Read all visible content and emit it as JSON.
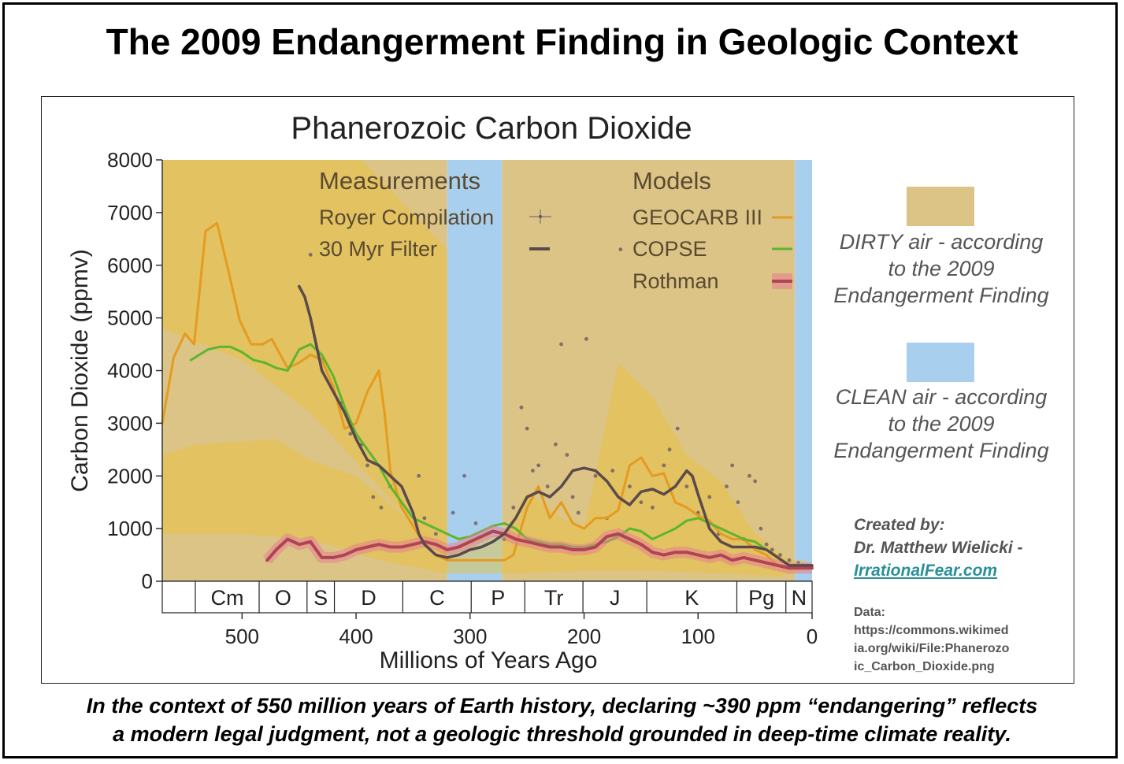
{
  "title": "The 2009 Endangerment Finding in Geologic Context",
  "chart_data": {
    "type": "line",
    "title": "Phanerozoic Carbon Dioxide",
    "xlabel": "Millions of Years Ago",
    "ylabel": "Carbon Dioxide (ppmv)",
    "xlim": [
      570,
      0
    ],
    "ylim": [
      0,
      8000
    ],
    "xticks": [
      500,
      400,
      300,
      200,
      100,
      0
    ],
    "yticks": [
      0,
      1000,
      2000,
      3000,
      4000,
      5000,
      6000,
      7000,
      8000
    ],
    "grid": false,
    "periods": [
      {
        "label": "Cm",
        "start": 541,
        "end": 485
      },
      {
        "label": "O",
        "start": 485,
        "end": 443
      },
      {
        "label": "S",
        "start": 443,
        "end": 419
      },
      {
        "label": "D",
        "start": 419,
        "end": 359
      },
      {
        "label": "C",
        "start": 359,
        "end": 299
      },
      {
        "label": "P",
        "start": 299,
        "end": 252
      },
      {
        "label": "Tr",
        "start": 252,
        "end": 201
      },
      {
        "label": "J",
        "start": 201,
        "end": 145
      },
      {
        "label": "K",
        "start": 145,
        "end": 66
      },
      {
        "label": "Pg",
        "start": 66,
        "end": 23
      },
      {
        "label": "N",
        "start": 23,
        "end": 0
      }
    ],
    "shaded_regions": [
      {
        "name": "DIRTY air",
        "color": "#dcc487",
        "ranges": [
          [
            570,
            320
          ],
          [
            272,
            15
          ]
        ]
      },
      {
        "name": "CLEAN air",
        "color": "#a9cfee",
        "ranges": [
          [
            320,
            272
          ],
          [
            15,
            0
          ]
        ]
      }
    ],
    "legend": {
      "measurements_heading": "Measurements",
      "models_heading": "Models",
      "royer_label": "Royer Compilation",
      "filter_label": "30 Myr Filter",
      "geocarb_label": "GEOCARB III",
      "copse_label": "COPSE",
      "rothman_label": "Rothman"
    },
    "series": [
      {
        "name": "GEOCARB III",
        "color": "#e59b1f",
        "x": [
          570,
          560,
          550,
          542,
          532,
          522,
          512,
          502,
          492,
          482,
          474,
          460,
          450,
          440,
          430,
          420,
          410,
          400,
          390,
          380,
          375,
          370,
          360,
          350,
          340,
          330,
          320,
          310,
          300,
          290,
          280,
          270,
          262,
          250,
          240,
          230,
          220,
          210,
          200,
          190,
          180,
          170,
          160,
          150,
          140,
          130,
          120,
          110,
          100,
          90,
          80,
          70,
          60,
          50,
          40,
          30,
          20,
          10,
          0
        ],
        "y": [
          3000,
          4250,
          4700,
          4500,
          6650,
          6800,
          5900,
          4950,
          4500,
          4500,
          4600,
          4050,
          4150,
          4300,
          4200,
          3700,
          2900,
          3000,
          3600,
          4000,
          3200,
          2100,
          1400,
          1050,
          700,
          500,
          400,
          400,
          400,
          400,
          400,
          400,
          500,
          1400,
          1800,
          1200,
          1500,
          1100,
          1000,
          1200,
          1200,
          1350,
          2200,
          2350,
          2000,
          2050,
          1500,
          1400,
          1250,
          1150,
          900,
          800,
          800,
          600,
          500,
          300,
          300,
          300,
          280
        ]
      },
      {
        "name": "COPSE",
        "color": "#5db52f",
        "x": [
          545,
          530,
          520,
          510,
          500,
          490,
          480,
          470,
          460,
          450,
          440,
          430,
          420,
          410,
          400,
          390,
          380,
          370,
          360,
          350,
          340,
          330,
          320,
          310,
          300,
          290,
          280,
          270,
          260,
          250,
          240,
          230,
          220,
          210,
          200,
          190,
          180,
          170,
          160,
          150,
          140,
          130,
          120,
          110,
          100,
          90,
          80,
          70,
          60,
          50,
          40,
          30,
          20,
          10,
          0
        ],
        "y": [
          4200,
          4400,
          4450,
          4450,
          4350,
          4200,
          4150,
          4050,
          4000,
          4400,
          4500,
          4300,
          3900,
          3300,
          2800,
          2500,
          2200,
          1800,
          1500,
          1200,
          1100,
          1000,
          900,
          800,
          850,
          950,
          1050,
          1100,
          1000,
          800,
          750,
          700,
          700,
          650,
          650,
          700,
          750,
          850,
          1000,
          950,
          800,
          900,
          1000,
          1150,
          1200,
          1100,
          1000,
          900,
          800,
          750,
          600,
          450,
          300,
          250,
          250
        ]
      },
      {
        "name": "Rothman",
        "color": "#b04456",
        "x": [
          478,
          470,
          460,
          450,
          440,
          430,
          420,
          410,
          400,
          390,
          380,
          370,
          360,
          350,
          340,
          330,
          320,
          310,
          300,
          290,
          280,
          270,
          260,
          250,
          240,
          230,
          220,
          210,
          200,
          190,
          180,
          170,
          160,
          150,
          140,
          130,
          120,
          110,
          100,
          90,
          80,
          70,
          60,
          50,
          40,
          30,
          20,
          10,
          0
        ],
        "y": [
          400,
          600,
          800,
          700,
          750,
          450,
          450,
          500,
          600,
          650,
          700,
          650,
          650,
          700,
          750,
          700,
          600,
          650,
          750,
          850,
          950,
          900,
          800,
          750,
          700,
          650,
          650,
          600,
          600,
          650,
          850,
          900,
          800,
          700,
          550,
          500,
          550,
          550,
          500,
          450,
          500,
          400,
          450,
          400,
          350,
          300,
          250,
          250,
          250
        ]
      },
      {
        "name": "30 Myr Filter",
        "color": "#5b4a4c",
        "x": [
          450,
          445,
          440,
          435,
          430,
          425,
          420,
          410,
          400,
          390,
          380,
          370,
          360,
          350,
          345,
          340,
          330,
          320,
          310,
          300,
          290,
          280,
          270,
          265,
          260,
          250,
          240,
          230,
          220,
          210,
          200,
          190,
          180,
          170,
          160,
          150,
          140,
          130,
          120,
          110,
          105,
          100,
          90,
          80,
          70,
          60,
          50,
          40,
          30,
          20,
          10,
          0
        ],
        "y": [
          5600,
          5400,
          5000,
          4500,
          4000,
          3800,
          3600,
          3200,
          2700,
          2300,
          2200,
          2000,
          1800,
          1300,
          900,
          700,
          500,
          450,
          500,
          600,
          650,
          750,
          900,
          1050,
          1200,
          1600,
          1700,
          1600,
          1800,
          2100,
          2150,
          2100,
          1900,
          1600,
          1450,
          1700,
          1750,
          1650,
          1800,
          2100,
          2000,
          1650,
          1000,
          750,
          650,
          650,
          650,
          600,
          450,
          300,
          300,
          300
        ]
      }
    ]
  },
  "legend_panel": {
    "dirty_label": "DIRTY air",
    "dirty_rest": " - according",
    "dirty_line2": "to the 2009",
    "dirty_line3": "Endangerment Finding",
    "clean_label": "CLEAN air",
    "clean_rest": " - according",
    "clean_line2": "to the 2009",
    "clean_line3": "Endangerment Finding",
    "dirty_color": "#dcc487",
    "clean_color": "#a9cfee"
  },
  "credit": {
    "line1": "Created by:",
    "line2": "Dr. Matthew Wielicki -",
    "link": "IrrationalFear.com"
  },
  "data_note": {
    "label": "Data:",
    "url": "https://commons.wikimedia.org/wiki/File:Phanerozoic_Carbon_Dioxide.png"
  },
  "caption": {
    "line1": "In the context of 550 million years of Earth history, declaring ~390 ppm “endangering” reflects",
    "line2": "a modern legal judgment, not a geologic threshold grounded in deep-time climate reality."
  }
}
